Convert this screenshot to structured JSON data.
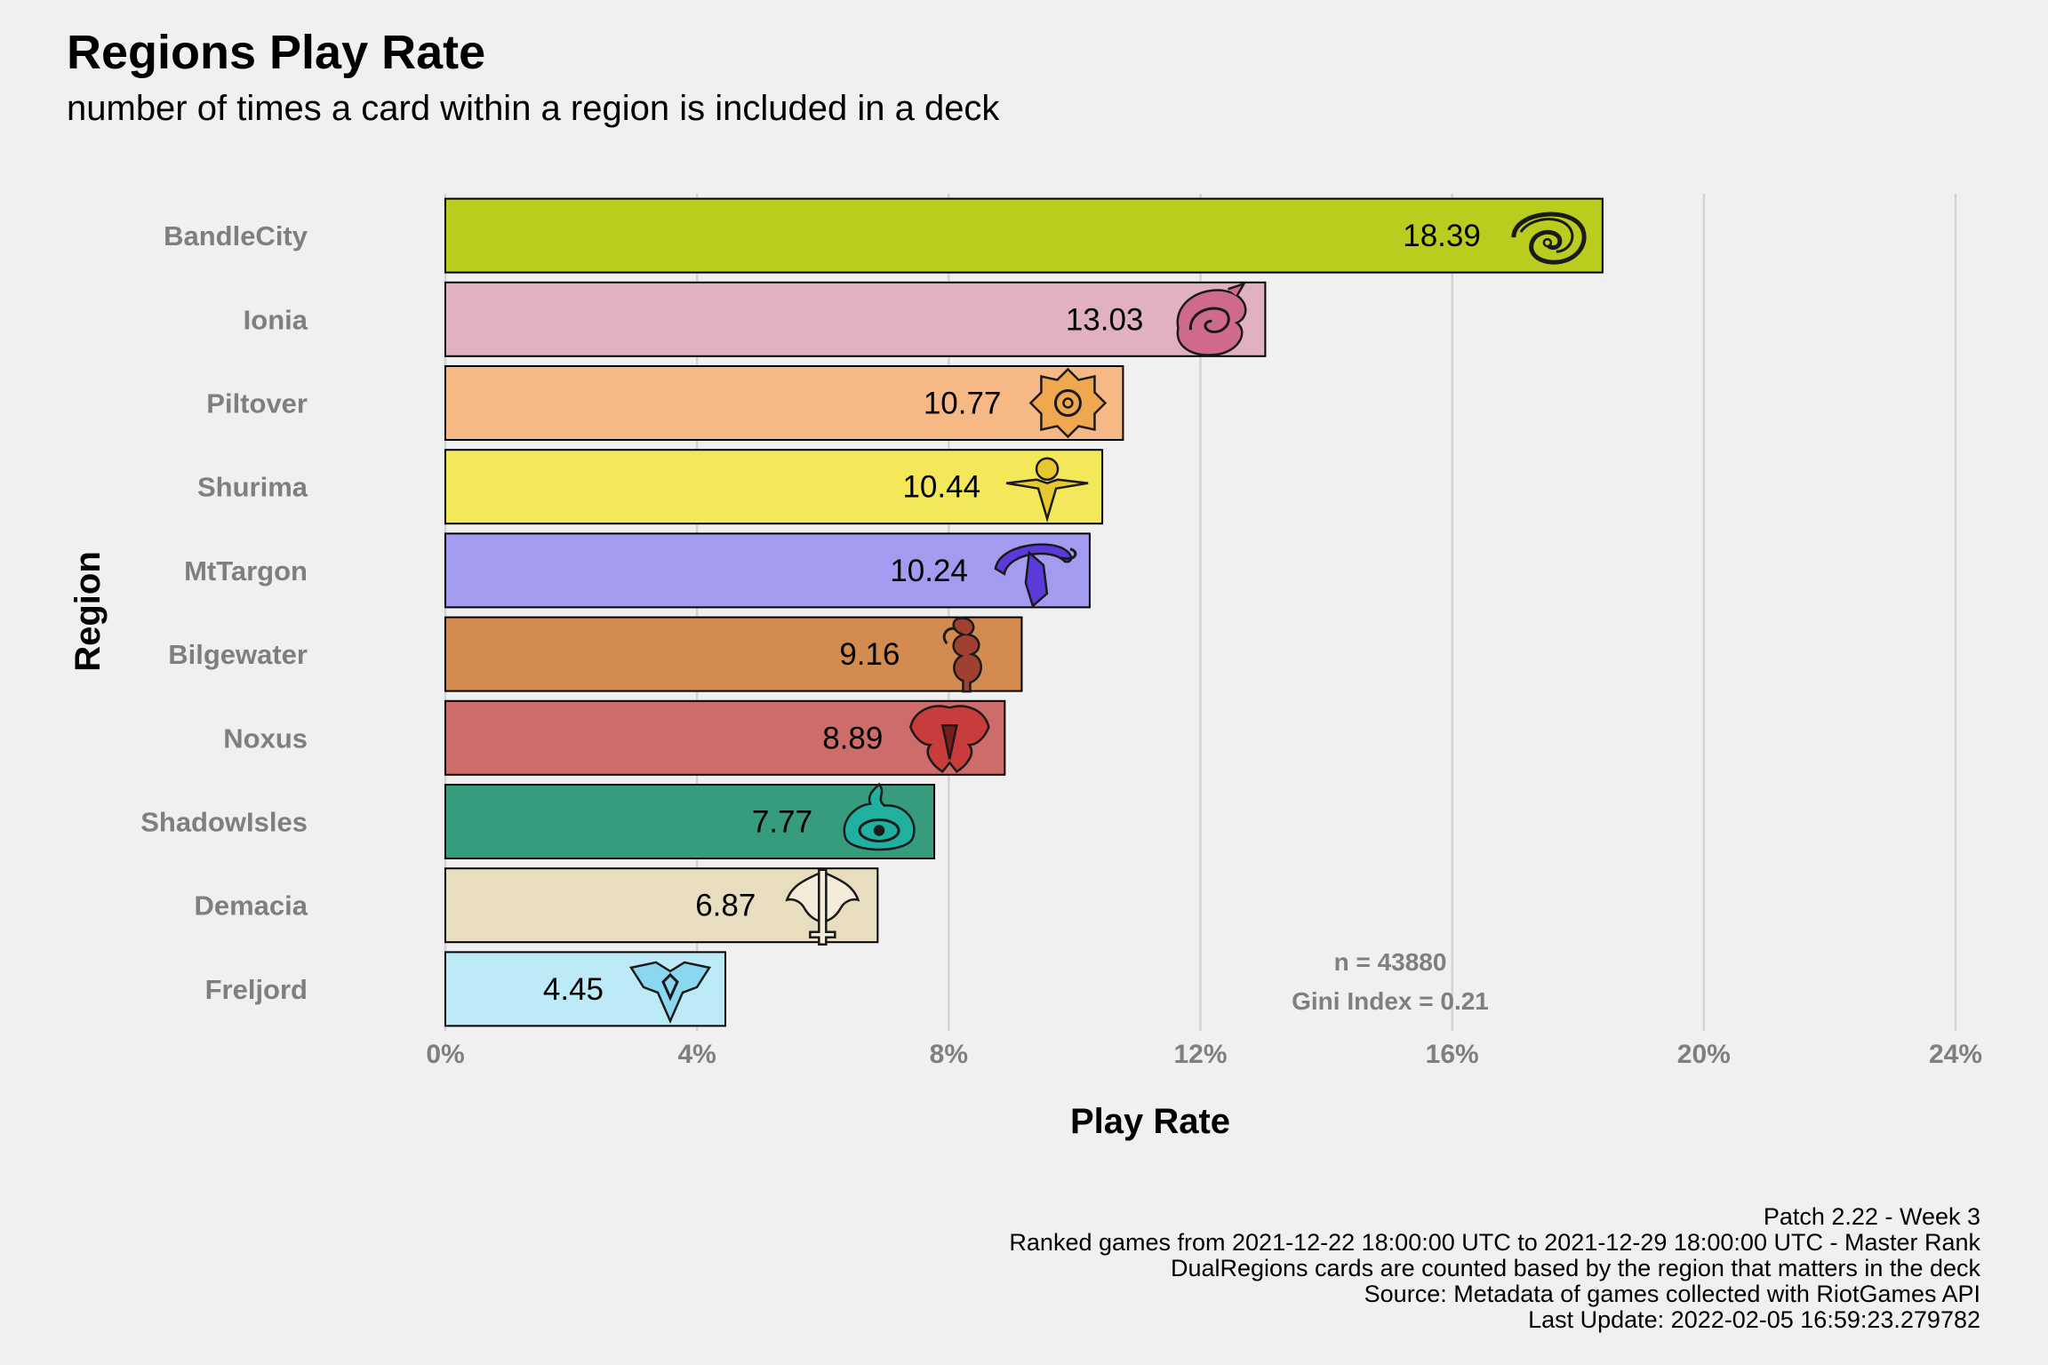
{
  "chart_data": {
    "type": "bar",
    "orientation": "horizontal",
    "title": "Regions Play Rate",
    "subtitle": "number of times a card within a region is included in a deck",
    "xlabel": "Play Rate",
    "ylabel": "Region",
    "xlim": [
      0,
      24
    ],
    "x_ticks": [
      "0%",
      "4%",
      "8%",
      "12%",
      "16%",
      "20%",
      "24%"
    ],
    "x_tick_values": [
      0,
      4,
      8,
      12,
      16,
      20,
      24
    ],
    "grid": true,
    "legend": "none",
    "categories": [
      "BandleCity",
      "Ionia",
      "Piltover",
      "Shurima",
      "MtTargon",
      "Bilgewater",
      "Noxus",
      "ShadowIsles",
      "Demacia",
      "Freljord"
    ],
    "values": [
      18.39,
      13.03,
      10.77,
      10.44,
      10.24,
      9.16,
      8.89,
      7.77,
      6.87,
      4.45
    ],
    "value_labels": [
      "18.39",
      "13.03",
      "10.77",
      "10.44",
      "10.24",
      "9.16",
      "8.89",
      "7.77",
      "6.87",
      "4.45"
    ],
    "colors": [
      "#bacd1f",
      "#e2b1c1",
      "#f6b986",
      "#f3e85a",
      "#a29bf0",
      "#d38b4f",
      "#ce6c6a",
      "#379c7d",
      "#e8ddbe",
      "#bdeaf7"
    ],
    "icons": [
      "bandlecity-emblem-icon",
      "ionia-emblem-icon",
      "piltover-emblem-icon",
      "shurima-emblem-icon",
      "mttargon-emblem-icon",
      "bilgewater-emblem-icon",
      "noxus-emblem-icon",
      "shadowisles-emblem-icon",
      "demacia-emblem-icon",
      "freljord-emblem-icon"
    ],
    "icon_colors": [
      "#c8d028",
      "#d06a8a",
      "#f0a850",
      "#e8c830",
      "#5a3ad8",
      "#a04030",
      "#c83c3c",
      "#20b0a0",
      "#f4ecd8",
      "#8ad8f0"
    ],
    "annotations": [
      "n = 43880",
      "Gini Index = 0.21"
    ]
  },
  "caption": [
    "Patch 2.22 - Week 3",
    "Ranked games from 2021-12-22 18:00:00 UTC to 2021-12-29 18:00:00 UTC - Master Rank",
    "DualRegions cards are counted based by the region that matters in the deck",
    "Source: Metadata of games collected with RiotGames API",
    "Last Update: 2022-02-05 16:59:23.279782"
  ],
  "colors": {
    "background": "#f0f0f0",
    "grid": "#d3d3d3",
    "axis_text": "#7f7f7f",
    "bar_border": "#000000"
  }
}
